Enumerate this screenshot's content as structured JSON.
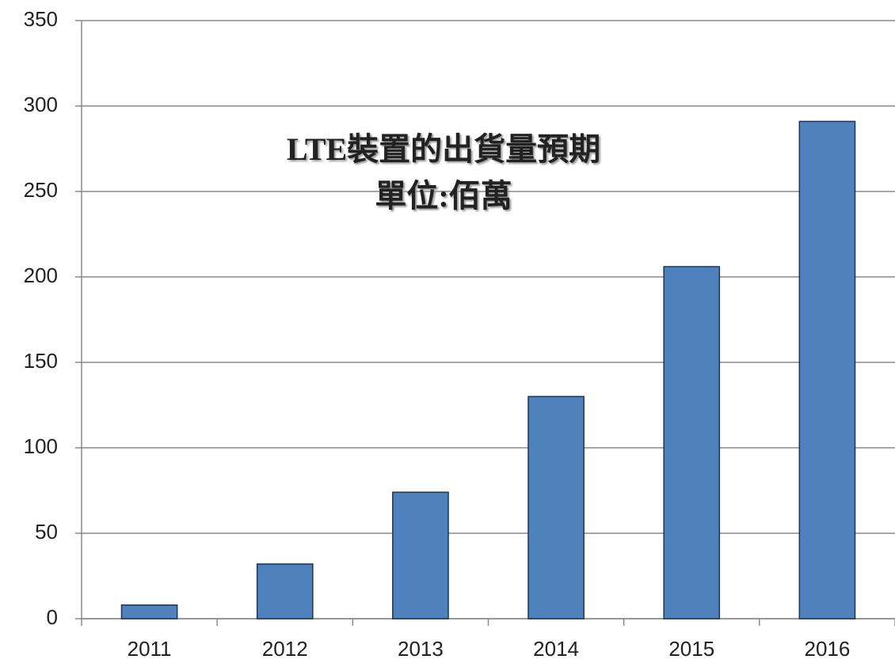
{
  "chart_data": {
    "type": "bar",
    "title": "LTE裝置的出貨量預期",
    "subtitle": "單位:佰萬",
    "categories": [
      "2011",
      "2012",
      "2013",
      "2014",
      "2015",
      "2016"
    ],
    "values": [
      8,
      32,
      74,
      130,
      206,
      291
    ],
    "color": "#4f81bd",
    "ylim": [
      0,
      350
    ],
    "yticks": [
      0,
      50,
      100,
      150,
      200,
      250,
      300,
      350
    ],
    "grid": true
  }
}
